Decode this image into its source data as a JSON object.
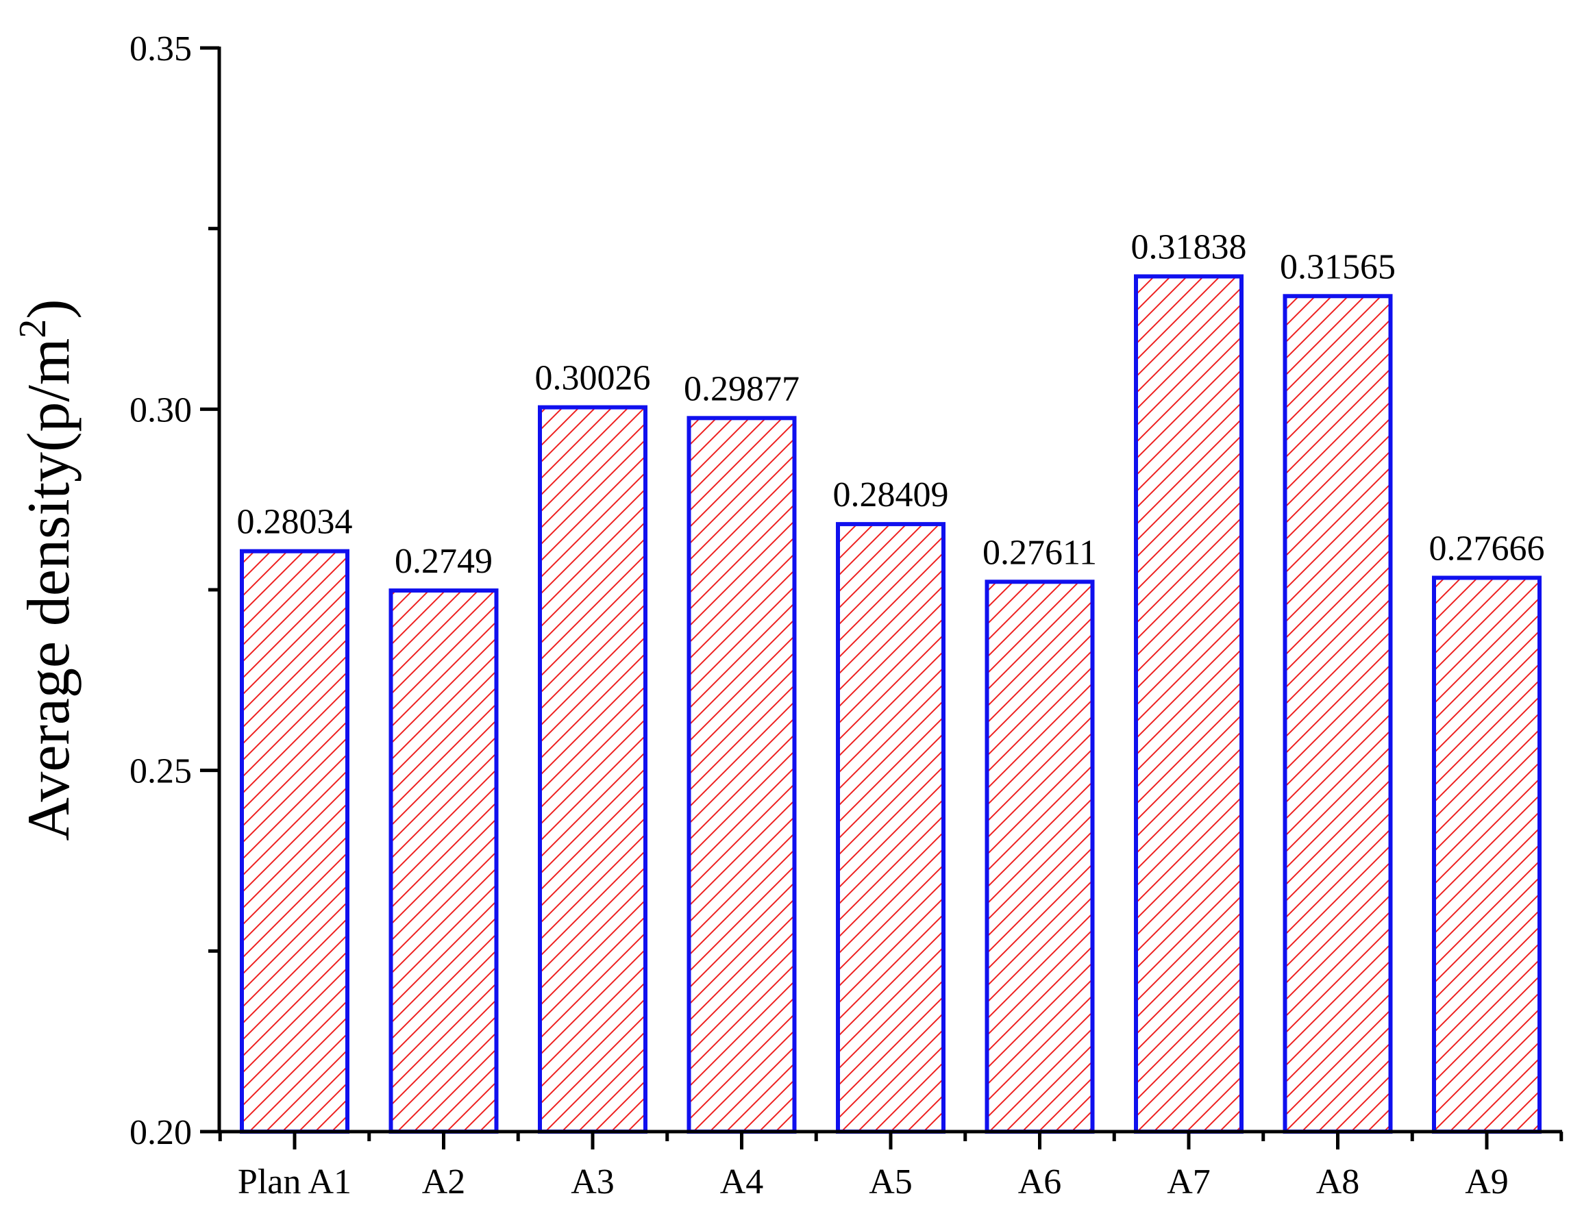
{
  "chart_data": {
    "type": "bar",
    "categories": [
      "Plan A1",
      "A2",
      "A3",
      "A4",
      "A5",
      "A6",
      "A7",
      "A8",
      "A9"
    ],
    "values": [
      0.28034,
      0.2749,
      0.30026,
      0.29877,
      0.28409,
      0.27611,
      0.31838,
      0.31565,
      0.27666
    ],
    "data_labels": [
      "0.28034",
      "0.2749",
      "0.30026",
      "0.29877",
      "0.28409",
      "0.27611",
      "0.31838",
      "0.31565",
      "0.27666"
    ],
    "ylabel": "Average density(p/m",
    "ylabel_superscript": "2",
    "ylabel_suffix": ")",
    "ylim": [
      0.2,
      0.35
    ],
    "y_ticks": [
      "0.20",
      "0.25",
      "0.30",
      "0.35"
    ],
    "y_tick_values": [
      0.2,
      0.25,
      0.3,
      0.35
    ],
    "y_minor_tick_values": [
      0.225,
      0.275,
      0.325
    ],
    "grid": false,
    "bar_style": {
      "edge_color": "#1010ee",
      "hatch_color": "#ee2020",
      "fill": "#ffffff",
      "hatch": "diagonal"
    }
  }
}
